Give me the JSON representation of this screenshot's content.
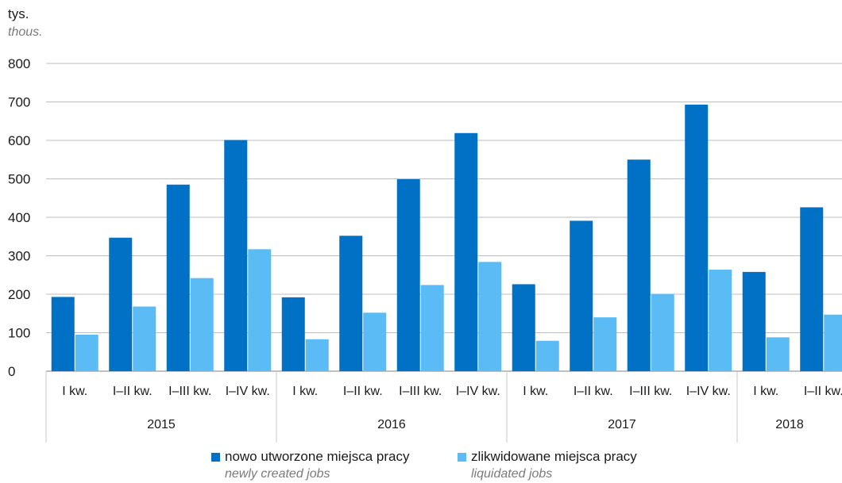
{
  "unit": {
    "main": "tys.",
    "sub": "thous."
  },
  "legend": [
    {
      "label": "nowo utworzone miejsca pracy",
      "sub": "newly created jobs",
      "color": "#0071c5"
    },
    {
      "label": "zlikwidowane miejsca pracy",
      "sub": "liquidated jobs",
      "color": "#5bbcf5"
    }
  ],
  "chart_data": {
    "type": "bar",
    "title": "",
    "ylabel": "tys.",
    "ylim": [
      0,
      800
    ],
    "yticks": [
      0,
      100,
      200,
      300,
      400,
      500,
      600,
      700,
      800
    ],
    "groups": [
      {
        "label": "2015",
        "categories": [
          "I kw.",
          "I–II kw.",
          "I–III kw.",
          "I–IV kw."
        ]
      },
      {
        "label": "2016",
        "categories": [
          "I kw.",
          "I–II kw.",
          "I–III kw.",
          "I–IV kw."
        ]
      },
      {
        "label": "2017",
        "categories": [
          "I kw.",
          "I–II kw.",
          "I–III kw.",
          "I–IV kw."
        ]
      },
      {
        "label": "2018",
        "categories": [
          "I kw.",
          "I–II kw."
        ]
      }
    ],
    "series": [
      {
        "name": "nowo utworzone miejsca pracy",
        "values": [
          193,
          347,
          485,
          601,
          192,
          352,
          499,
          619,
          226,
          391,
          550,
          693,
          258,
          426
        ]
      },
      {
        "name": "zlikwidowane miejsca pracy",
        "values": [
          95,
          168,
          242,
          317,
          83,
          152,
          224,
          284,
          79,
          140,
          201,
          264,
          88,
          147
        ]
      }
    ],
    "grid": true,
    "legend_position": "bottom"
  }
}
